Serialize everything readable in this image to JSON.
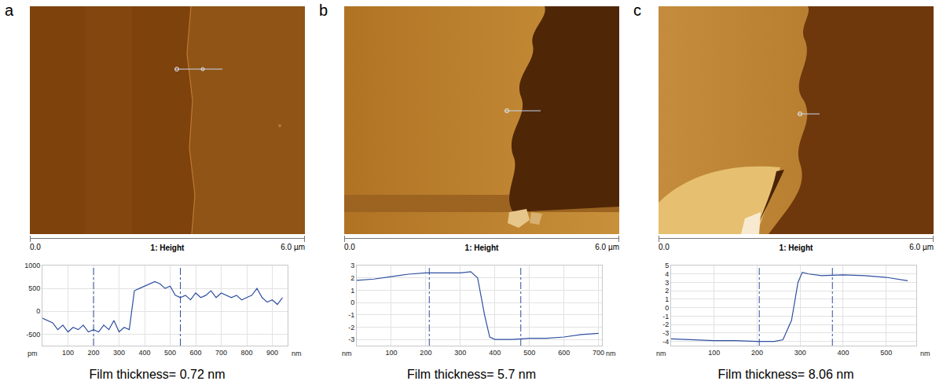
{
  "chart_data": [
    {
      "panel": "a",
      "type": "line",
      "image": {
        "channel": "1: Height",
        "scale_start": "0.0",
        "scale_end": "6.0 µm"
      },
      "annotations": [
        "Film thickness= 0.72 nm"
      ],
      "x_label": "nm",
      "y_label": "pm",
      "x": [
        0,
        20,
        40,
        60,
        80,
        100,
        120,
        140,
        160,
        180,
        200,
        220,
        240,
        260,
        280,
        300,
        320,
        340,
        360,
        380,
        400,
        420,
        440,
        460,
        480,
        500,
        520,
        540,
        560,
        580,
        600,
        620,
        640,
        660,
        680,
        700,
        720,
        740,
        760,
        780,
        800,
        820,
        840,
        860,
        880,
        900,
        920,
        940
      ],
      "values": [
        -150,
        -200,
        -250,
        -400,
        -300,
        -450,
        -350,
        -400,
        -300,
        -450,
        -400,
        -450,
        -300,
        -400,
        -200,
        -450,
        -350,
        -400,
        450,
        500,
        550,
        600,
        650,
        600,
        500,
        550,
        350,
        300,
        350,
        250,
        400,
        300,
        350,
        450,
        300,
        400,
        350,
        300,
        350,
        250,
        300,
        350,
        500,
        300,
        200,
        250,
        150,
        300
      ],
      "color": "#2f4fa0",
      "line_style": "solid",
      "grid": true,
      "xlim": [
        0,
        960
      ],
      "xticks": [
        100,
        200,
        300,
        400,
        500,
        600,
        700,
        800,
        900
      ],
      "ylim": [
        -750,
        1000
      ],
      "yticks": [
        -500,
        0,
        500,
        1000
      ],
      "cursors": [
        200,
        540
      ]
    },
    {
      "panel": "b",
      "type": "line",
      "image": {
        "channel": "1: Height",
        "scale_start": "0.0",
        "scale_end": "6.0 µm"
      },
      "annotations": [
        "Film thickness= 5.7 nm"
      ],
      "x_label": "nm",
      "y_label": "nm",
      "x": [
        0,
        50,
        100,
        150,
        200,
        250,
        300,
        330,
        350,
        370,
        385,
        400,
        450,
        500,
        550,
        600,
        650,
        700
      ],
      "values": [
        1.8,
        1.9,
        2.1,
        2.3,
        2.4,
        2.4,
        2.4,
        2.5,
        2.0,
        -1.0,
        -2.8,
        -3.0,
        -3.0,
        -2.9,
        -2.9,
        -2.8,
        -2.6,
        -2.5
      ],
      "color": "#2f4fa0",
      "line_style": "solid",
      "grid": true,
      "xlim": [
        0,
        710
      ],
      "xticks": [
        100,
        200,
        300,
        400,
        500,
        600,
        700
      ],
      "ylim": [
        -3.5,
        3
      ],
      "yticks": [
        -3,
        -2,
        -1,
        0,
        1,
        2,
        3
      ],
      "cursors": [
        210,
        475
      ]
    },
    {
      "panel": "c",
      "type": "line",
      "image": {
        "channel": "1: Height",
        "scale_start": "0.0",
        "scale_end": "6.0 µm"
      },
      "annotations": [
        "Film thickness= 8.06 nm"
      ],
      "x_label": "nm",
      "y_label": "nm",
      "x": [
        0,
        50,
        100,
        150,
        200,
        240,
        260,
        280,
        295,
        305,
        320,
        350,
        400,
        450,
        500,
        550
      ],
      "values": [
        -3.7,
        -3.8,
        -3.9,
        -3.9,
        -4.0,
        -4.0,
        -3.8,
        -1.5,
        3.0,
        4.2,
        4.0,
        3.8,
        3.9,
        3.8,
        3.6,
        3.2
      ],
      "color": "#2f4fa0",
      "line_style": "solid",
      "grid": true,
      "xlim": [
        0,
        570
      ],
      "xticks": [
        100,
        200,
        300,
        400,
        500
      ],
      "ylim": [
        -4.5,
        5
      ],
      "yticks": [
        -4,
        -3,
        -2,
        -1,
        0,
        1,
        2,
        3,
        4,
        5
      ],
      "cursors": [
        205,
        375
      ]
    }
  ]
}
